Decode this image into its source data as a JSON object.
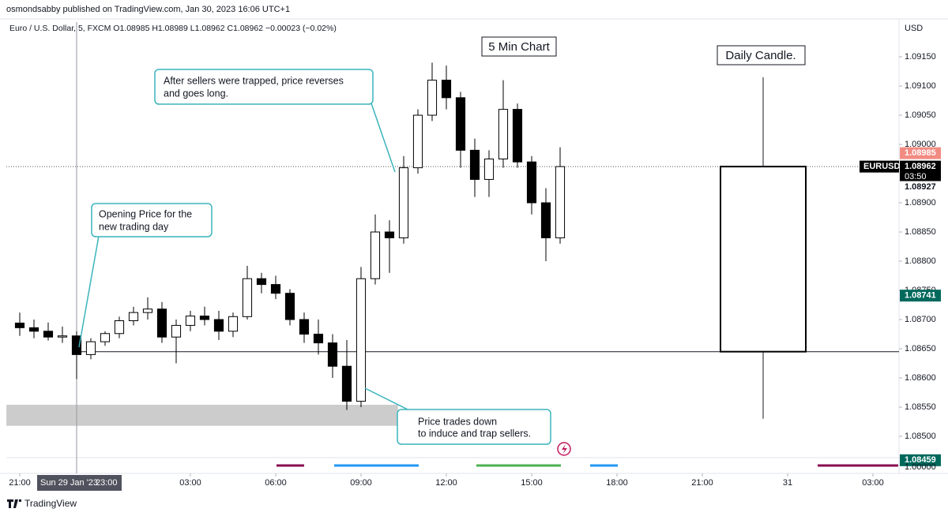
{
  "chart_data": {
    "type": "candlestick",
    "header": "osmondsabby published on TradingView.com, Jan 30, 2023 16:06 UTC+1",
    "legend": "Euro / U.S. Dollar, 5, FXCM O1.08985 H1.08989 L1.08962 C1.08962 −0.00023 (−0.02%)",
    "currency": "USD",
    "title": "5 Min Chart",
    "daily_title": "Daily Candle.",
    "footer": "TradingView",
    "annotations": [
      {
        "lines": [
          "After sellers were trapped, price reverses",
          "and goes long."
        ]
      },
      {
        "lines": [
          "Opening Price for the",
          "new trading day"
        ]
      },
      {
        "lines": [
          "Price trades down",
          "to induce and trap sellers."
        ]
      }
    ],
    "x": [
      0,
      0.5,
      1,
      1.5,
      2,
      2.5,
      3,
      3.5,
      4,
      4.5,
      5,
      5.5,
      6,
      6.5,
      7,
      7.5,
      8,
      8.5,
      9,
      9.5,
      10,
      10.5,
      11,
      11.5,
      12,
      12.5,
      13,
      13.5,
      14,
      14.5,
      15,
      15.5,
      16,
      16.5,
      17,
      17.5,
      18,
      18.5,
      19
    ],
    "ohlc": [
      [
        1.08694,
        1.08712,
        1.08672,
        1.08686
      ],
      [
        1.08686,
        1.087,
        1.08668,
        1.0868
      ],
      [
        1.0868,
        1.08695,
        1.08664,
        1.0867
      ],
      [
        1.0867,
        1.08688,
        1.0866,
        1.08672
      ],
      [
        1.08672,
        1.0868,
        1.08598,
        1.0864
      ],
      [
        1.0864,
        1.08668,
        1.08632,
        1.08662
      ],
      [
        1.08662,
        1.0868,
        1.08655,
        1.08676
      ],
      [
        1.08676,
        1.08705,
        1.08668,
        1.08698
      ],
      [
        1.08698,
        1.08722,
        1.0869,
        1.08712
      ],
      [
        1.08712,
        1.08738,
        1.087,
        1.08718
      ],
      [
        1.08718,
        1.0873,
        1.0866,
        1.0867
      ],
      [
        1.0867,
        1.087,
        1.08625,
        1.0869
      ],
      [
        1.0869,
        1.08715,
        1.0868,
        1.08706
      ],
      [
        1.08706,
        1.08722,
        1.0869,
        1.087
      ],
      [
        1.087,
        1.08715,
        1.08665,
        1.0868
      ],
      [
        1.0868,
        1.08712,
        1.0867,
        1.08705
      ],
      [
        1.08705,
        1.08792,
        1.087,
        1.0877
      ],
      [
        1.0877,
        1.0878,
        1.08745,
        1.0876
      ],
      [
        1.0876,
        1.08775,
        1.08735,
        1.08745
      ],
      [
        1.08745,
        1.08752,
        1.0869,
        1.087
      ],
      [
        1.087,
        1.08712,
        1.0866,
        1.08675
      ],
      [
        1.08675,
        1.087,
        1.0864,
        1.0866
      ],
      [
        1.0866,
        1.08675,
        1.086,
        1.0862
      ],
      [
        1.0862,
        1.08665,
        1.08545,
        1.0856
      ],
      [
        1.0856,
        1.0879,
        1.0855,
        1.0877
      ],
      [
        1.0877,
        1.0888,
        1.0876,
        1.0885
      ],
      [
        1.0885,
        1.0887,
        1.0878,
        1.0884
      ],
      [
        1.0884,
        1.0898,
        1.0883,
        1.0896
      ],
      [
        1.0896,
        1.0906,
        1.0895,
        1.0905
      ],
      [
        1.0905,
        1.0914,
        1.0904,
        1.0911
      ],
      [
        1.0911,
        1.09135,
        1.0906,
        1.0908
      ],
      [
        1.0908,
        1.0909,
        1.0896,
        1.0899
      ],
      [
        1.0899,
        1.0901,
        1.0891,
        1.0894
      ],
      [
        1.0894,
        1.0899,
        1.0891,
        1.08975
      ],
      [
        1.08975,
        1.0911,
        1.0896,
        1.0906
      ],
      [
        1.0906,
        1.0907,
        1.0896,
        1.0897
      ],
      [
        1.0897,
        1.0898,
        1.0888,
        1.089
      ],
      [
        1.089,
        1.08925,
        1.088,
        1.0884
      ],
      [
        1.0884,
        1.08995,
        1.0883,
        1.08962
      ]
    ],
    "up_color": "#ffffff",
    "down_color": "#000000",
    "daily_candle": {
      "open": 1.08645,
      "high": 1.09115,
      "low": 1.0853,
      "close": 1.08962
    },
    "open_line": 1.08645,
    "zone": {
      "low": 1.08518,
      "high": 1.08554,
      "start": -0.47,
      "end": 13.3,
      "color": "#cccccc"
    },
    "crosshair": {
      "date": "Sun 29 Jan '23",
      "time": "23:00",
      "x": 2
    },
    "xlim": [
      -0.472,
      30.917
    ],
    "xticks": [
      {
        "value": 0,
        "label": "21:00"
      },
      {
        "value": 6,
        "label": "03:00"
      },
      {
        "value": 9,
        "label": "06:00"
      },
      {
        "value": 12,
        "label": "09:00"
      },
      {
        "value": 15,
        "label": "12:00"
      },
      {
        "value": 18,
        "label": "15:00"
      },
      {
        "value": 21,
        "label": "18:00"
      },
      {
        "value": 24,
        "label": "21:00"
      },
      {
        "value": 27,
        "label": "31"
      },
      {
        "value": 30,
        "label": "03:00"
      }
    ],
    "ylim": [
      1.084635,
      1.092095
    ],
    "yticks": [
      {
        "value": 1.0915,
        "label": "1.09150"
      },
      {
        "value": 1.091,
        "label": "1.09100"
      },
      {
        "value": 1.0905,
        "label": "1.09050"
      },
      {
        "value": 1.09,
        "label": "1.09000"
      },
      {
        "value": 1.089,
        "label": "1.08900"
      },
      {
        "value": 1.0885,
        "label": "1.08850"
      },
      {
        "value": 1.088,
        "label": "1.08800"
      },
      {
        "value": 1.0875,
        "label": "1.08750"
      },
      {
        "value": 1.087,
        "label": "1.08700"
      },
      {
        "value": 1.0865,
        "label": "1.08650"
      },
      {
        "value": 1.086,
        "label": "1.08600"
      },
      {
        "value": 1.0855,
        "label": "1.08550"
      },
      {
        "value": 1.085,
        "label": "1.08500"
      }
    ],
    "grid": false,
    "price_labels": [
      {
        "value": 1.08985,
        "label": "1.08985",
        "color": "#f28b82",
        "text_color": "#ffffff"
      },
      {
        "value": 1.08962,
        "label": "1.08962",
        "color": "#000000",
        "text_color": "#ffffff",
        "name": "EURUSD",
        "countdown": "03:50"
      },
      {
        "value": 1.08927,
        "label": "1.08927",
        "color": "#ffffff",
        "text_color": "#131722"
      },
      {
        "value": 1.08741,
        "label": "1.08741",
        "color": "#00695c",
        "text_color": "#ffffff"
      },
      {
        "value": 1.08459,
        "label": "1.08459",
        "color": "#00695c",
        "text_color": "#ffffff"
      }
    ],
    "indicator_label": "1.00000"
  }
}
